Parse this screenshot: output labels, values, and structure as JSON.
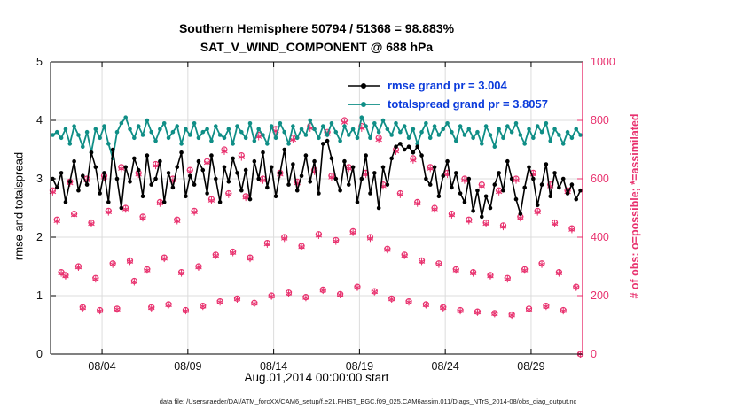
{
  "colors": {
    "pink": "#e8316e",
    "teal": "#0f8e86",
    "legend_blue": "#0b3bdb",
    "grid": "#dcdcdc",
    "axis_black": "#000000"
  },
  "title": {
    "line1": "Southern Hemisphere 50794 / 51368 = 98.883%",
    "line2": "SAT_V_WIND_COMPONENT @ 688 hPa"
  },
  "legend": {
    "items": [
      {
        "label": "rmse grand pr = 3.004",
        "color": "#000000"
      },
      {
        "label": "totalspread grand pr = 3.8057",
        "color": "#0f8e86"
      }
    ]
  },
  "axes": {
    "xlabel": "Aug.01,2014 00:00:00 start",
    "ylabel_left": "rmse and totalspread",
    "ylabel_right": "# of obs: o=possible; *=assimilated"
  },
  "caption": "data file: /Users/raeder/DAI/ATM_forcXX/CAM6_setup/f.e21.FHIST_BGC.f09_025.CAM6assim.011/Diags_NTrS_2014-08/obs_diag_output.nc",
  "chart_data": {
    "type": "line",
    "title": "Southern Hemisphere 50794 / 51368 = 98.883% — SAT_V_WIND_COMPONENT @ 688 hPa",
    "xlabel": "Aug.01,2014 00:00:00 start",
    "ylabel_left": "rmse and totalspread",
    "ylabel_right": "# of obs: o=possible; *=assimilated",
    "grid": true,
    "legend_position": "upper right inside",
    "xlim": [
      1,
      32
    ],
    "ylim_left": [
      0,
      5
    ],
    "ylim_right": [
      0,
      1000
    ],
    "x_start": 1.125,
    "x_step": 0.25,
    "xticks": [
      {
        "value": 4,
        "label": "08/04"
      },
      {
        "value": 9,
        "label": "08/09"
      },
      {
        "value": 14,
        "label": "08/14"
      },
      {
        "value": 19,
        "label": "08/19"
      },
      {
        "value": 24,
        "label": "08/24"
      },
      {
        "value": 29,
        "label": "08/29"
      }
    ],
    "yticks_left": [
      0,
      1,
      2,
      3,
      4,
      5
    ],
    "yticks_right": [
      0,
      200,
      400,
      600,
      800,
      1000
    ],
    "series": [
      {
        "name": "possible",
        "type": "scatter",
        "marker": "o",
        "axis": "right",
        "color": "#e8316e",
        "values": [
          560,
          460,
          280,
          270,
          590,
          480,
          300,
          160,
          600,
          450,
          260,
          150,
          610,
          490,
          310,
          155,
          640,
          500,
          320,
          250,
          620,
          470,
          290,
          160,
          650,
          520,
          330,
          170,
          600,
          460,
          280,
          150,
          630,
          490,
          300,
          165,
          660,
          530,
          340,
          180,
          700,
          550,
          350,
          190,
          680,
          540,
          330,
          175,
          750,
          600,
          380,
          200,
          770,
          620,
          400,
          210,
          740,
          590,
          370,
          195,
          780,
          630,
          410,
          220,
          760,
          610,
          390,
          205,
          800,
          640,
          420,
          230,
          780,
          620,
          400,
          215,
          740,
          580,
          360,
          190,
          700,
          550,
          340,
          180,
          670,
          520,
          320,
          170,
          640,
          500,
          310,
          160,
          620,
          480,
          290,
          150,
          600,
          460,
          280,
          145,
          580,
          450,
          270,
          140,
          560,
          440,
          260,
          135,
          600,
          470,
          290,
          155,
          620,
          490,
          310,
          165,
          580,
          450,
          280,
          150,
          560,
          430,
          230,
          0
        ]
      },
      {
        "name": "assimilated",
        "type": "scatter",
        "marker": "*",
        "axis": "right",
        "color": "#e8316e",
        "values": [
          555,
          456,
          277,
          267,
          585,
          476,
          297,
          158,
          595,
          446,
          257,
          148,
          605,
          486,
          307,
          153,
          635,
          496,
          317,
          247,
          615,
          466,
          287,
          158,
          645,
          516,
          327,
          168,
          595,
          456,
          277,
          148,
          625,
          486,
          297,
          163,
          655,
          526,
          337,
          178,
          694,
          546,
          347,
          188,
          674,
          536,
          327,
          173,
          744,
          595,
          376,
          198,
          764,
          615,
          396,
          208,
          734,
          585,
          367,
          193,
          773,
          625,
          406,
          218,
          754,
          605,
          386,
          203,
          793,
          635,
          416,
          228,
          773,
          615,
          396,
          213,
          734,
          575,
          357,
          188,
          694,
          546,
          337,
          178,
          664,
          516,
          317,
          168,
          635,
          496,
          307,
          158,
          615,
          476,
          287,
          148,
          595,
          456,
          277,
          143,
          575,
          446,
          267,
          138,
          555,
          436,
          257,
          133,
          595,
          466,
          287,
          153,
          615,
          486,
          307,
          163,
          575,
          446,
          277,
          148,
          555,
          426,
          228,
          0
        ]
      },
      {
        "name": "totalspread",
        "type": "line",
        "axis": "left",
        "color": "#0f8e86",
        "values": [
          3.75,
          3.8,
          3.7,
          3.85,
          3.6,
          3.9,
          3.75,
          3.55,
          3.8,
          3.45,
          3.85,
          3.7,
          3.9,
          3.6,
          3.35,
          3.8,
          3.95,
          4.05,
          3.85,
          3.7,
          3.9,
          3.75,
          4.0,
          3.8,
          3.65,
          3.85,
          3.95,
          3.7,
          3.8,
          3.9,
          3.6,
          3.85,
          3.75,
          3.95,
          3.7,
          3.8,
          3.85,
          3.65,
          3.9,
          3.75,
          3.7,
          3.85,
          3.6,
          3.9,
          3.8,
          3.7,
          3.95,
          3.65,
          3.85,
          3.75,
          3.6,
          3.9,
          3.7,
          3.95,
          3.8,
          3.6,
          3.9,
          3.7,
          3.85,
          3.75,
          4.0,
          3.85,
          3.7,
          3.9,
          3.75,
          3.95,
          3.8,
          3.65,
          3.9,
          3.75,
          3.85,
          3.7,
          4.05,
          3.9,
          3.7,
          3.95,
          3.8,
          4.0,
          3.85,
          3.75,
          3.95,
          3.8,
          3.9,
          3.7,
          3.85,
          3.6,
          3.8,
          3.95,
          3.7,
          3.9,
          3.75,
          3.85,
          3.95,
          3.8,
          3.65,
          3.9,
          3.75,
          3.85,
          3.7,
          3.8,
          3.6,
          3.9,
          3.75,
          3.55,
          3.85,
          3.7,
          3.9,
          3.8,
          3.95,
          3.75,
          3.6,
          3.85,
          3.7,
          3.9,
          3.8,
          3.95,
          3.65,
          3.85,
          3.75,
          3.6,
          3.8,
          3.7,
          3.85,
          3.75
        ]
      },
      {
        "name": "rmse",
        "type": "line",
        "axis": "left",
        "color": "#000000",
        "values": [
          3.0,
          2.85,
          3.1,
          2.6,
          2.95,
          3.3,
          2.8,
          3.05,
          2.9,
          3.45,
          3.2,
          2.75,
          3.1,
          2.6,
          3.5,
          3.0,
          2.5,
          3.2,
          2.95,
          3.35,
          3.15,
          2.7,
          3.4,
          2.9,
          3.0,
          3.3,
          2.6,
          3.1,
          2.85,
          3.2,
          3.45,
          2.7,
          3.05,
          2.9,
          3.3,
          3.15,
          2.75,
          3.4,
          3.0,
          2.6,
          3.2,
          2.95,
          3.35,
          3.1,
          2.8,
          3.15,
          2.65,
          3.3,
          3.0,
          3.45,
          2.85,
          3.2,
          2.7,
          3.1,
          3.5,
          2.9,
          3.25,
          2.8,
          3.05,
          3.4,
          2.95,
          3.3,
          2.75,
          3.6,
          3.65,
          3.35,
          3.0,
          2.8,
          3.3,
          2.9,
          3.2,
          2.6,
          3.0,
          3.4,
          2.75,
          3.1,
          2.5,
          3.2,
          2.9,
          3.35,
          3.55,
          3.6,
          3.5,
          3.55,
          3.45,
          3.55,
          3.4,
          3.0,
          2.9,
          3.2,
          2.7,
          3.05,
          3.3,
          2.85,
          3.1,
          2.75,
          2.6,
          3.0,
          2.45,
          2.8,
          2.35,
          2.7,
          2.5,
          2.9,
          3.1,
          2.8,
          3.3,
          3.0,
          2.65,
          2.4,
          2.85,
          3.2,
          3.0,
          2.55,
          2.9,
          3.25,
          2.7,
          3.1,
          2.85,
          3.0,
          2.75,
          2.9,
          2.65,
          2.8
        ]
      }
    ]
  }
}
